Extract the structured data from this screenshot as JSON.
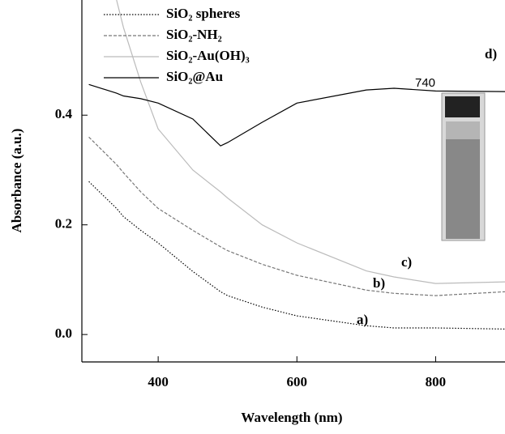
{
  "chart_data": {
    "type": "line",
    "x_label": "Wavelength (nm)",
    "y_label": "Absorbance (a.u.)",
    "x": [
      300,
      340,
      350,
      375,
      400,
      450,
      490,
      500,
      550,
      600,
      700,
      740,
      800,
      900
    ],
    "series": [
      {
        "name": "SiO₂ spheres",
        "color": "#000000",
        "dash": "dotted",
        "values": [
          0.279,
          0.23,
          0.215,
          0.19,
          0.167,
          0.115,
          0.078,
          0.071,
          0.05,
          0.034,
          0.016,
          0.012,
          0.012,
          0.01
        ]
      },
      {
        "name": "SiO₂-NH₂",
        "color": "#777777",
        "dash": "dashed",
        "values": [
          0.36,
          0.31,
          0.295,
          0.26,
          0.23,
          0.19,
          0.16,
          0.153,
          0.128,
          0.108,
          0.081,
          0.075,
          0.071,
          0.078
        ]
      },
      {
        "name": "SiO₂-Au(OH)₃",
        "color": "#bbbbbb",
        "dash": "solid",
        "values": [
          null,
          0.61,
          0.56,
          0.46,
          0.375,
          0.3,
          0.26,
          0.249,
          0.2,
          0.167,
          0.116,
          0.105,
          0.093,
          0.096
        ]
      },
      {
        "name": "SiO₂@Au",
        "color": "#000000",
        "dash": "solid",
        "values": [
          0.456,
          0.44,
          0.435,
          0.43,
          0.422,
          0.393,
          0.344,
          0.35,
          0.387,
          0.422,
          0.446,
          0.449,
          0.444,
          0.443
        ]
      }
    ],
    "annotations": [
      "a)",
      "b)",
      "c)",
      "d)",
      "740"
    ],
    "xlim": [
      290,
      900
    ],
    "ylim": [
      -0.05,
      0.61
    ],
    "xticks": [
      400,
      600,
      800
    ],
    "yticks": [
      {
        "value": 0,
        "label": "0.0"
      },
      0.2,
      0.4
    ]
  }
}
